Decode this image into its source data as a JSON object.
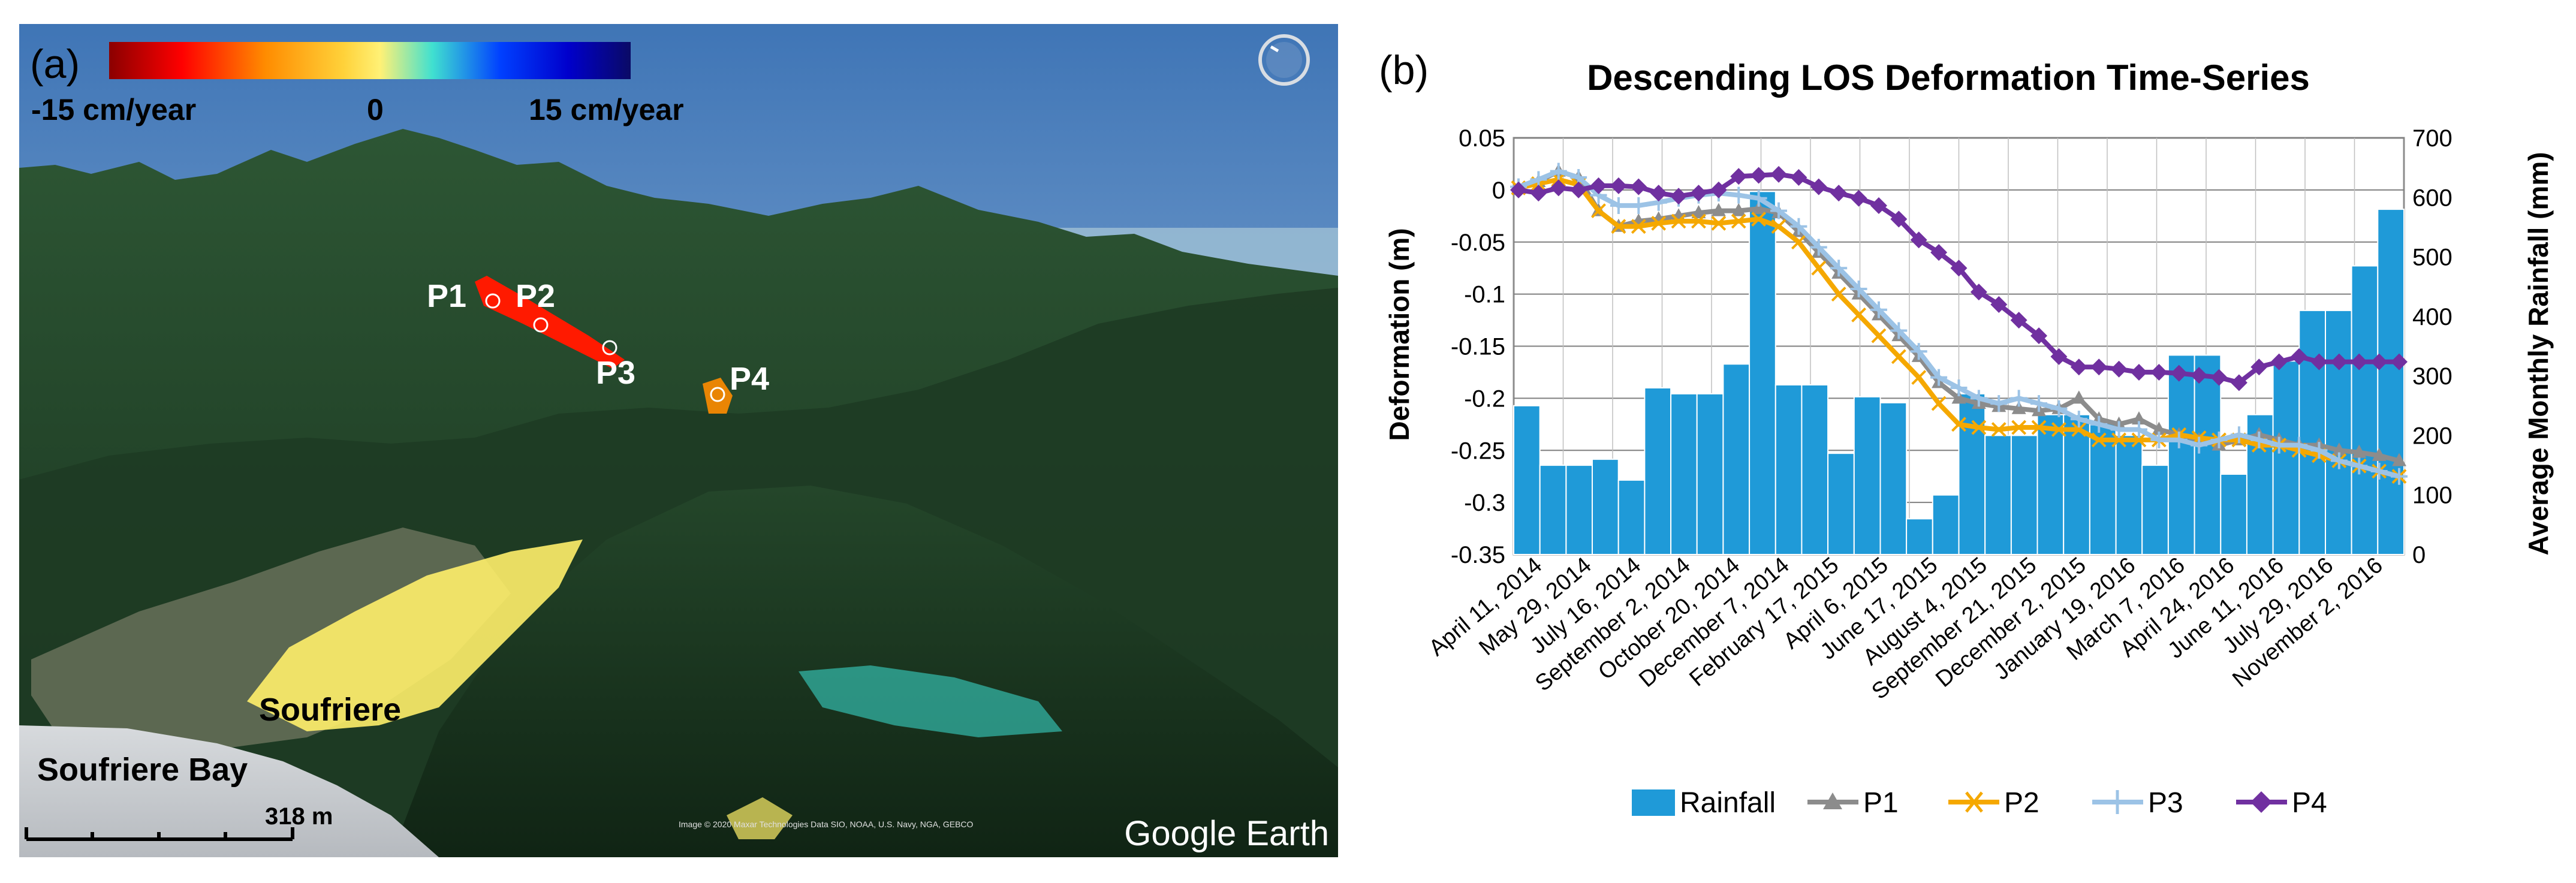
{
  "panel_a": {
    "label": "(a)",
    "colorbar": {
      "min_label": "-15 cm/year",
      "mid_label": "0",
      "max_label": "15 cm/year",
      "colors": [
        "#8b0000",
        "#ff0000",
        "#ff8c00",
        "#ffd23a",
        "#fff176",
        "#40e0d0",
        "#0040ff",
        "#0000cc",
        "#0a0a66"
      ]
    },
    "points": [
      "P1",
      "P2",
      "P3",
      "P4"
    ],
    "place_labels": {
      "town": "Soufriere",
      "bay": "Soufriere Bay"
    },
    "scale_label": "318 m",
    "attribution": "Image © 2020 Maxar Technologies Data SIO, NOAA, U.S. Navy, NGA, GEBCO",
    "brand": "Google Earth",
    "icons": [
      "compass-icon"
    ],
    "colors": {
      "deformation_zone": "#ff1a00",
      "terrain_dark": "#1c3a24",
      "terrain_mid": "#2f5a36",
      "sky": "#5e8fc4",
      "sea": "#c9cdd1"
    }
  },
  "chart_data": {
    "type": "bar+line",
    "label": "(b)",
    "title": "Descending LOS Deformation Time-Series",
    "ylabel": "Deformation (m)",
    "y2label": "Average Monthly Rainfall (mm)",
    "ylim": [
      -0.35,
      0.05
    ],
    "y2lim": [
      0,
      700
    ],
    "yticks": [
      "0.05",
      "0",
      "-0.05",
      "-0.1",
      "-0.15",
      "-0.2",
      "-0.25",
      "-0.3",
      "-0.35"
    ],
    "y2ticks": [
      "700",
      "600",
      "500",
      "400",
      "300",
      "200",
      "100",
      "0"
    ],
    "xtick_labels": [
      "April 11, 2014",
      "May 29, 2014",
      "July 16, 2014",
      "September 2, 2014",
      "October 20, 2014",
      "December 7, 2014",
      "February 17, 2015",
      "April 6, 2015",
      "June 17, 2015",
      "August 4, 2015",
      "September 21, 2015",
      "December 2, 2015",
      "January 19, 2016",
      "March 7, 2016",
      "April 24, 2016",
      "June 11, 2016",
      "July 29, 2016",
      "November 2, 2016"
    ],
    "rainfall": [
      250,
      150,
      150,
      160,
      125,
      280,
      270,
      270,
      320,
      610,
      285,
      285,
      170,
      265,
      255,
      60,
      100,
      270,
      200,
      200,
      235,
      235,
      225,
      200,
      150,
      335,
      335,
      135,
      235,
      325,
      410,
      410,
      485,
      580
    ],
    "series": [
      {
        "name": "Rainfall",
        "color": "#1f9ad8"
      },
      {
        "name": "P1",
        "color": "#8c8c8c",
        "values": [
          0.002,
          0.008,
          0.018,
          0.012,
          -0.02,
          -0.035,
          -0.03,
          -0.028,
          -0.025,
          -0.022,
          -0.02,
          -0.02,
          -0.018,
          -0.022,
          -0.04,
          -0.06,
          -0.08,
          -0.1,
          -0.12,
          -0.14,
          -0.16,
          -0.185,
          -0.2,
          -0.205,
          -0.208,
          -0.21,
          -0.212,
          -0.21,
          -0.2,
          -0.22,
          -0.225,
          -0.22,
          -0.23,
          -0.235,
          -0.24,
          -0.245,
          -0.24,
          -0.235,
          -0.24,
          -0.245,
          -0.245,
          -0.25,
          -0.252,
          -0.255,
          -0.26
        ]
      },
      {
        "name": "P2",
        "color": "#f5a800",
        "values": [
          0.002,
          0.006,
          0.01,
          0.005,
          -0.02,
          -0.035,
          -0.035,
          -0.032,
          -0.03,
          -0.03,
          -0.032,
          -0.03,
          -0.028,
          -0.035,
          -0.05,
          -0.075,
          -0.1,
          -0.12,
          -0.14,
          -0.16,
          -0.18,
          -0.205,
          -0.225,
          -0.228,
          -0.23,
          -0.228,
          -0.228,
          -0.23,
          -0.23,
          -0.24,
          -0.24,
          -0.24,
          -0.24,
          -0.235,
          -0.238,
          -0.24,
          -0.24,
          -0.245,
          -0.245,
          -0.25,
          -0.255,
          -0.26,
          -0.265,
          -0.27,
          -0.275
        ]
      },
      {
        "name": "P3",
        "color": "#9cc3e6",
        "values": [
          0.003,
          0.01,
          0.018,
          0.012,
          -0.005,
          -0.015,
          -0.015,
          -0.012,
          -0.008,
          -0.005,
          -0.003,
          -0.005,
          -0.008,
          -0.02,
          -0.035,
          -0.055,
          -0.075,
          -0.095,
          -0.115,
          -0.135,
          -0.155,
          -0.18,
          -0.19,
          -0.2,
          -0.205,
          -0.2,
          -0.205,
          -0.21,
          -0.22,
          -0.225,
          -0.23,
          -0.23,
          -0.24,
          -0.24,
          -0.245,
          -0.24,
          -0.235,
          -0.24,
          -0.245,
          -0.245,
          -0.25,
          -0.26,
          -0.265,
          -0.27,
          -0.275
        ]
      },
      {
        "name": "P4",
        "color": "#7030a0",
        "values": [
          0.0,
          -0.003,
          0.002,
          0.0,
          0.004,
          0.004,
          0.003,
          -0.003,
          -0.006,
          -0.003,
          0.0,
          0.013,
          0.014,
          0.015,
          0.012,
          0.003,
          -0.003,
          -0.008,
          -0.015,
          -0.028,
          -0.048,
          -0.06,
          -0.075,
          -0.098,
          -0.11,
          -0.125,
          -0.14,
          -0.16,
          -0.17,
          -0.17,
          -0.172,
          -0.175,
          -0.175,
          -0.176,
          -0.178,
          -0.18,
          -0.185,
          -0.17,
          -0.165,
          -0.16,
          -0.165,
          -0.165,
          -0.165,
          -0.165,
          -0.165
        ]
      }
    ],
    "legend_position": "bottom"
  }
}
